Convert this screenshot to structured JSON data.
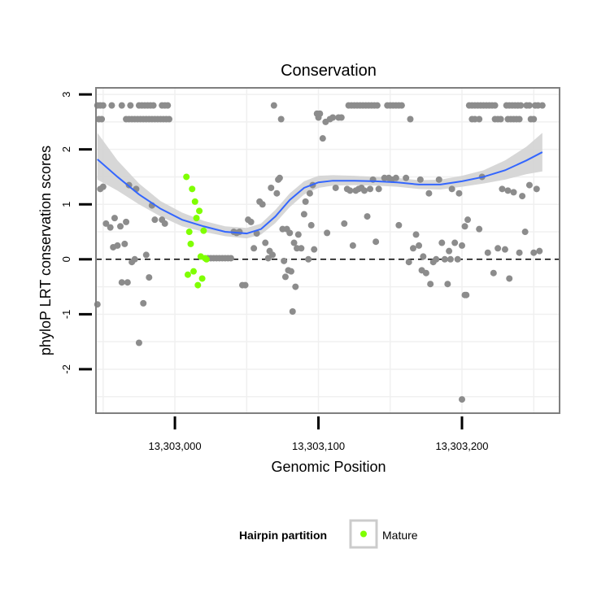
{
  "chart_data": {
    "type": "scatter",
    "title": "Conservation",
    "xlabel": "Genomic Position",
    "ylabel": "phyloP LRT conservation scores",
    "xlim": [
      13302945,
      13303268
    ],
    "ylim": [
      -2.8,
      3.12
    ],
    "x_ticks": [
      {
        "value": 13303000,
        "label": "13,303,000"
      },
      {
        "value": 13303100,
        "label": "13,303,100"
      },
      {
        "value": 13303200,
        "label": "13,303,200"
      }
    ],
    "y_ticks": [
      {
        "value": -2,
        "label": "-2"
      },
      {
        "value": -1,
        "label": "-1"
      },
      {
        "value": 0,
        "label": "0"
      },
      {
        "value": 1,
        "label": "1"
      },
      {
        "value": 2,
        "label": "2"
      },
      {
        "value": 3,
        "label": "3"
      }
    ],
    "reference_line_y": 0,
    "grid": true,
    "colors": {
      "points": "#8c8c8c",
      "mature": "#7fff00",
      "smooth_line": "#3366ff",
      "ribbon": "#d3d3d3",
      "panel_border": "#7f7f7f",
      "grid": "#f0f0f0"
    },
    "legend": {
      "title": "Hairpin partition",
      "position": "bottom",
      "entries": [
        {
          "label": "Mature",
          "color": "#7fff00"
        }
      ]
    },
    "series": [
      {
        "color": "#8c8c8c",
        "points": [
          [
            13302946,
            2.8
          ],
          [
            13302948,
            2.8
          ],
          [
            13302950,
            2.8
          ],
          [
            13302956,
            2.8
          ],
          [
            13302963,
            2.8
          ],
          [
            13302969,
            2.8
          ],
          [
            13302975,
            2.8
          ],
          [
            13302977,
            2.8
          ],
          [
            13302979,
            2.8
          ],
          [
            13302981,
            2.8
          ],
          [
            13302983,
            2.8
          ],
          [
            13302985,
            2.8
          ],
          [
            13302991,
            2.8
          ],
          [
            13302993,
            2.8
          ],
          [
            13302995,
            2.8
          ],
          [
            13302947,
            2.55
          ],
          [
            13302949,
            2.55
          ],
          [
            13302966,
            2.55
          ],
          [
            13302968,
            2.55
          ],
          [
            13302970,
            2.55
          ],
          [
            13302972,
            2.55
          ],
          [
            13302974,
            2.55
          ],
          [
            13302976,
            2.55
          ],
          [
            13302978,
            2.55
          ],
          [
            13302980,
            2.55
          ],
          [
            13302982,
            2.55
          ],
          [
            13302984,
            2.55
          ],
          [
            13302986,
            2.55
          ],
          [
            13302988,
            2.55
          ],
          [
            13302990,
            2.55
          ],
          [
            13302992,
            2.55
          ],
          [
            13302994,
            2.55
          ],
          [
            13302996,
            2.55
          ],
          [
            13302946,
            -0.82
          ],
          [
            13302948,
            1.28
          ],
          [
            13302950,
            1.32
          ],
          [
            13302952,
            0.65
          ],
          [
            13302955,
            0.58
          ],
          [
            13302957,
            0.22
          ],
          [
            13302958,
            0.75
          ],
          [
            13302960,
            0.25
          ],
          [
            13302962,
            0.6
          ],
          [
            13302963,
            -0.42
          ],
          [
            13302965,
            0.28
          ],
          [
            13302966,
            0.68
          ],
          [
            13302967,
            -0.42
          ],
          [
            13302968,
            1.35
          ],
          [
            13302970,
            -0.05
          ],
          [
            13302972,
            0.0
          ],
          [
            13302973,
            1.28
          ],
          [
            13302975,
            -1.52
          ],
          [
            13302978,
            -0.8
          ],
          [
            13302980,
            0.08
          ],
          [
            13302982,
            -0.33
          ],
          [
            13302984,
            0.98
          ],
          [
            13302986,
            0.72
          ],
          [
            13302991,
            0.72
          ],
          [
            13302993,
            0.65
          ],
          [
            13303023,
            0.02
          ],
          [
            13303025,
            0.02
          ],
          [
            13303027,
            0.02
          ],
          [
            13303029,
            0.02
          ],
          [
            13303031,
            0.02
          ],
          [
            13303033,
            0.02
          ],
          [
            13303035,
            0.02
          ],
          [
            13303037,
            0.02
          ],
          [
            13303039,
            0.02
          ],
          [
            13303041,
            0.5
          ],
          [
            13303043,
            0.48
          ],
          [
            13303045,
            0.5
          ],
          [
            13303047,
            -0.47
          ],
          [
            13303049,
            -0.47
          ],
          [
            13303051,
            0.72
          ],
          [
            13303053,
            0.68
          ],
          [
            13303055,
            0.2
          ],
          [
            13303057,
            0.47
          ],
          [
            13303059,
            1.05
          ],
          [
            13303061,
            1.0
          ],
          [
            13303063,
            0.3
          ],
          [
            13303065,
            0.02
          ],
          [
            13303066,
            0.15
          ],
          [
            13303067,
            1.3
          ],
          [
            13303068,
            0.08
          ],
          [
            13303069,
            2.8
          ],
          [
            13303071,
            1.2
          ],
          [
            13303072,
            1.45
          ],
          [
            13303073,
            1.48
          ],
          [
            13303074,
            2.55
          ],
          [
            13303075,
            0.55
          ],
          [
            13303076,
            -0.03
          ],
          [
            13303077,
            -0.32
          ],
          [
            13303078,
            0.55
          ],
          [
            13303079,
            -0.2
          ],
          [
            13303080,
            0.48
          ],
          [
            13303081,
            -0.22
          ],
          [
            13303082,
            -0.95
          ],
          [
            13303083,
            0.3
          ],
          [
            13303084,
            -0.5
          ],
          [
            13303085,
            0.2
          ],
          [
            13303086,
            0.45
          ],
          [
            13303088,
            0.2
          ],
          [
            13303090,
            0.82
          ],
          [
            13303091,
            1.05
          ],
          [
            13303093,
            0.0
          ],
          [
            13303094,
            1.2
          ],
          [
            13303095,
            0.62
          ],
          [
            13303096,
            1.35
          ],
          [
            13303097,
            0.18
          ],
          [
            13303099,
            2.65
          ],
          [
            13303100,
            2.58
          ],
          [
            13303101,
            2.65
          ],
          [
            13303103,
            2.2
          ],
          [
            13303105,
            2.5
          ],
          [
            13303106,
            0.48
          ],
          [
            13303108,
            2.55
          ],
          [
            13303110,
            2.58
          ],
          [
            13303112,
            1.3
          ],
          [
            13303114,
            2.58
          ],
          [
            13303116,
            2.58
          ],
          [
            13303118,
            0.65
          ],
          [
            13303121,
            2.8
          ],
          [
            13303123,
            2.8
          ],
          [
            13303125,
            2.8
          ],
          [
            13303127,
            2.8
          ],
          [
            13303129,
            2.8
          ],
          [
            13303131,
            2.8
          ],
          [
            13303133,
            2.8
          ],
          [
            13303135,
            2.8
          ],
          [
            13303137,
            2.8
          ],
          [
            13303139,
            2.8
          ],
          [
            13303141,
            2.8
          ],
          [
            13303120,
            1.28
          ],
          [
            13303122,
            1.25
          ],
          [
            13303124,
            0.25
          ],
          [
            13303126,
            1.25
          ],
          [
            13303128,
            1.28
          ],
          [
            13303130,
            1.3
          ],
          [
            13303132,
            1.25
          ],
          [
            13303134,
            0.78
          ],
          [
            13303136,
            1.28
          ],
          [
            13303138,
            1.45
          ],
          [
            13303140,
            0.32
          ],
          [
            13303142,
            1.28
          ],
          [
            13303148,
            2.8
          ],
          [
            13303150,
            2.8
          ],
          [
            13303152,
            2.8
          ],
          [
            13303154,
            2.8
          ],
          [
            13303156,
            2.8
          ],
          [
            13303158,
            2.8
          ],
          [
            13303146,
            1.48
          ],
          [
            13303149,
            1.48
          ],
          [
            13303151,
            1.45
          ],
          [
            13303154,
            1.48
          ],
          [
            13303156,
            0.62
          ],
          [
            13303161,
            1.48
          ],
          [
            13303163,
            -0.05
          ],
          [
            13303164,
            2.55
          ],
          [
            13303166,
            0.2
          ],
          [
            13303168,
            0.45
          ],
          [
            13303170,
            0.25
          ],
          [
            13303171,
            1.45
          ],
          [
            13303172,
            -0.2
          ],
          [
            13303173,
            0.05
          ],
          [
            13303175,
            -0.25
          ],
          [
            13303177,
            1.2
          ],
          [
            13303178,
            -0.45
          ],
          [
            13303180,
            -0.05
          ],
          [
            13303182,
            0.0
          ],
          [
            13303184,
            1.45
          ],
          [
            13303186,
            0.3
          ],
          [
            13303188,
            0.0
          ],
          [
            13303190,
            -0.45
          ],
          [
            13303191,
            0.15
          ],
          [
            13303192,
            0.0
          ],
          [
            13303193,
            1.28
          ],
          [
            13303195,
            0.3
          ],
          [
            13303197,
            0.0
          ],
          [
            13303198,
            1.2
          ],
          [
            13303200,
            0.25
          ],
          [
            13303202,
            0.6
          ],
          [
            13303203,
            -0.65
          ],
          [
            13303204,
            0.72
          ],
          [
            13303205,
            2.8
          ],
          [
            13303207,
            2.8
          ],
          [
            13303209,
            2.8
          ],
          [
            13303211,
            2.8
          ],
          [
            13303213,
            2.8
          ],
          [
            13303215,
            2.8
          ],
          [
            13303217,
            2.8
          ],
          [
            13303219,
            2.8
          ],
          [
            13303221,
            2.8
          ],
          [
            13303223,
            2.8
          ],
          [
            13303207,
            2.55
          ],
          [
            13303209,
            2.55
          ],
          [
            13303212,
            2.55
          ],
          [
            13303231,
            2.8
          ],
          [
            13303233,
            2.8
          ],
          [
            13303235,
            2.8
          ],
          [
            13303237,
            2.8
          ],
          [
            13303239,
            2.8
          ],
          [
            13303241,
            2.8
          ],
          [
            13303245,
            2.8
          ],
          [
            13303247,
            2.8
          ],
          [
            13303251,
            2.8
          ],
          [
            13303253,
            2.8
          ],
          [
            13303223,
            2.55
          ],
          [
            13303225,
            2.55
          ],
          [
            13303227,
            2.55
          ],
          [
            13303232,
            2.55
          ],
          [
            13303234,
            2.55
          ],
          [
            13303236,
            2.55
          ],
          [
            13303238,
            2.55
          ],
          [
            13303240,
            2.55
          ],
          [
            13303248,
            2.55
          ],
          [
            13303250,
            2.55
          ],
          [
            13303200,
            -2.55
          ],
          [
            13303202,
            -0.65
          ],
          [
            13303212,
            0.55
          ],
          [
            13303214,
            1.5
          ],
          [
            13303218,
            0.12
          ],
          [
            13303222,
            -0.25
          ],
          [
            13303225,
            0.2
          ],
          [
            13303228,
            1.28
          ],
          [
            13303230,
            0.18
          ],
          [
            13303232,
            1.25
          ],
          [
            13303233,
            -0.35
          ],
          [
            13303236,
            1.22
          ],
          [
            13303240,
            0.12
          ],
          [
            13303242,
            1.15
          ],
          [
            13303244,
            0.5
          ],
          [
            13303247,
            1.35
          ],
          [
            13303250,
            0.12
          ],
          [
            13303252,
            1.28
          ],
          [
            13303254,
            0.15
          ],
          [
            13303256,
            2.8
          ]
        ]
      },
      {
        "name": "Mature",
        "color": "#7fff00",
        "points": [
          [
            13303008,
            1.5
          ],
          [
            13303009,
            -0.28
          ],
          [
            13303010,
            0.5
          ],
          [
            13303011,
            0.28
          ],
          [
            13303012,
            1.28
          ],
          [
            13303013,
            -0.22
          ],
          [
            13303014,
            1.05
          ],
          [
            13303015,
            0.75
          ],
          [
            13303016,
            -0.47
          ],
          [
            13303017,
            0.88
          ],
          [
            13303018,
            0.05
          ],
          [
            13303019,
            -0.35
          ],
          [
            13303020,
            0.52
          ],
          [
            13303021,
            0.02
          ],
          [
            13303022,
            0.0
          ]
        ]
      }
    ],
    "smooth": {
      "x": [
        13302946,
        13302960,
        13302975,
        13302990,
        13303005,
        13303020,
        13303035,
        13303050,
        13303060,
        13303070,
        13303080,
        13303090,
        13303100,
        13303110,
        13303125,
        13303140,
        13303155,
        13303170,
        13303185,
        13303200,
        13303215,
        13303230,
        13303245,
        13303256
      ],
      "y": [
        1.82,
        1.5,
        1.18,
        0.92,
        0.72,
        0.6,
        0.5,
        0.47,
        0.55,
        0.78,
        1.08,
        1.3,
        1.4,
        1.43,
        1.43,
        1.42,
        1.4,
        1.36,
        1.36,
        1.42,
        1.5,
        1.62,
        1.8,
        1.95
      ],
      "lower": [
        1.45,
        1.25,
        1.0,
        0.78,
        0.6,
        0.5,
        0.42,
        0.38,
        0.45,
        0.66,
        0.95,
        1.18,
        1.3,
        1.34,
        1.35,
        1.34,
        1.32,
        1.28,
        1.27,
        1.32,
        1.38,
        1.45,
        1.55,
        1.6
      ],
      "upper": [
        2.3,
        1.8,
        1.38,
        1.06,
        0.85,
        0.7,
        0.6,
        0.57,
        0.65,
        0.9,
        1.2,
        1.42,
        1.52,
        1.53,
        1.52,
        1.5,
        1.48,
        1.44,
        1.45,
        1.52,
        1.62,
        1.8,
        2.05,
        2.3
      ]
    }
  }
}
